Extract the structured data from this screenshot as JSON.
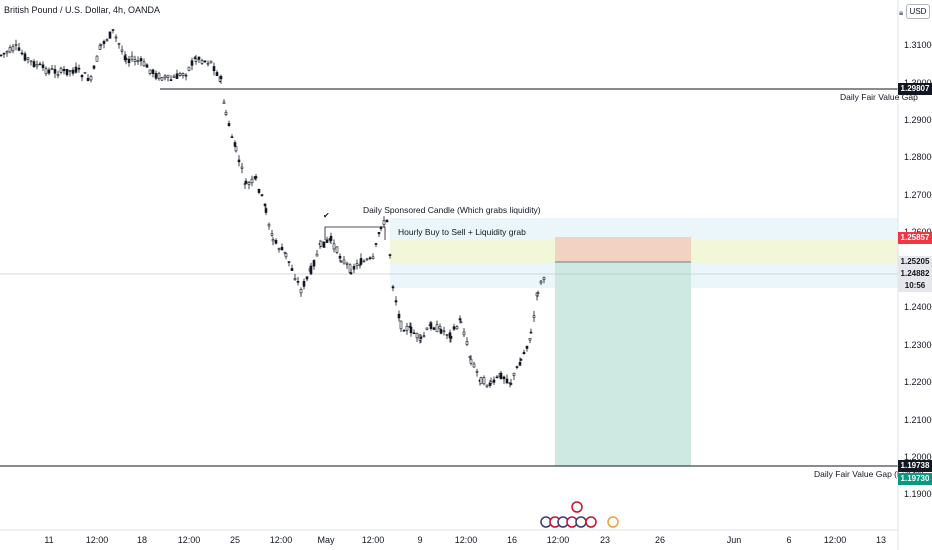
{
  "header": {
    "title": "British Pound / U.S. Dollar, 4h, OANDA",
    "currency_button": "USD"
  },
  "price_axis": {
    "ticks": [
      "1.31000",
      "1.30000",
      "1.29000",
      "1.28000",
      "1.27000",
      "1.26000",
      "1.25000",
      "1.24000",
      "1.23000",
      "1.22000",
      "1.21000",
      "1.20000",
      "1.19000"
    ],
    "badges": {
      "upper_gap": "1.29807",
      "stop": "1.25857",
      "entry": "1.25205",
      "last_price": "1.24882",
      "countdown": "10:56",
      "lower_gap": "1.19738",
      "target": "1.19730"
    }
  },
  "time_axis": {
    "ticks": [
      "11",
      "12:00",
      "18",
      "12:00",
      "25",
      "12:00",
      "May",
      "12:00",
      "9",
      "12:00",
      "16",
      "12:00",
      "23",
      "26",
      "Jun",
      "6",
      "12:00",
      "13"
    ]
  },
  "annotations": {
    "upper_gap_label": "Daily Fair Value Gap",
    "lower_gap_label": "Daily Fair Value Gap (Full fill)",
    "sponsored_candle": "Daily Sponsored Candle (Which grabs liquidity)",
    "hourly_note": "Hourly Buy to Sell + Liquidity grab",
    "checkmark": "✔"
  },
  "colors": {
    "stop_zone": "#f2d2c2",
    "target_zone": "#cde9e2",
    "fvg_zone": "#eaf6fa",
    "hourly_zone": "#f3f7d9",
    "badge_red": "#f23645",
    "badge_green": "#089981",
    "badge_dark": "#131722",
    "badge_light": "#e6e7ea"
  },
  "icons": [
    "lock-icon",
    "us-flag-event-icon",
    "uk-flag-event-icon"
  ]
}
